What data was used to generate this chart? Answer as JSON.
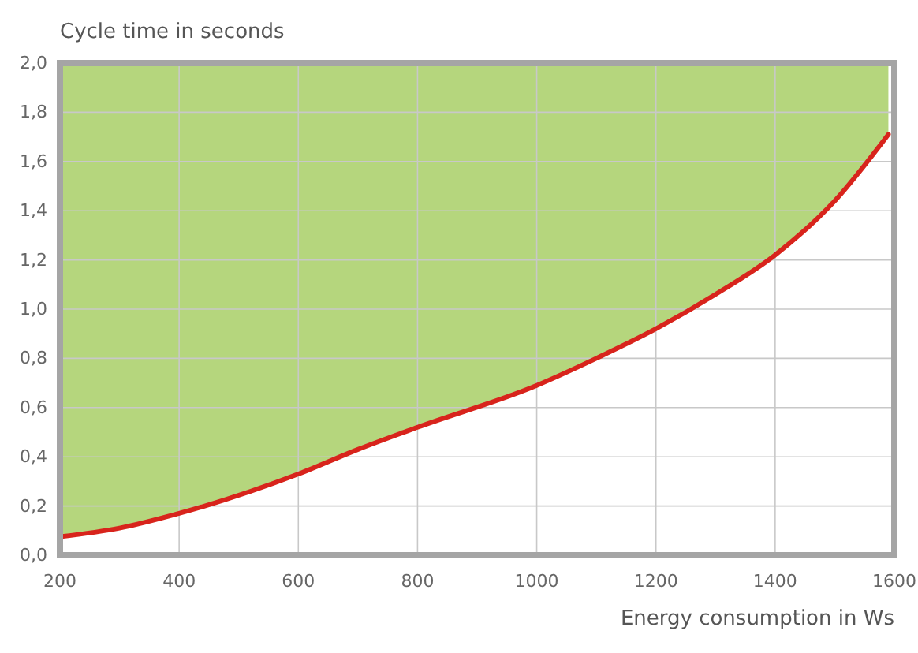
{
  "chart_data": {
    "type": "line",
    "title": "Cycle time in seconds",
    "xlabel": "Energy consumption in Ws",
    "xlim": [
      200,
      1600
    ],
    "xticks": [
      200,
      400,
      600,
      800,
      1000,
      1200,
      1400,
      1600
    ],
    "ylim": [
      0,
      2
    ],
    "yticks": [
      {
        "value": 0,
        "label": "0,0"
      },
      {
        "value": 0.2,
        "label": "0,2"
      },
      {
        "value": 0.4,
        "label": "0,4"
      },
      {
        "value": 0.6,
        "label": "0,6"
      },
      {
        "value": 0.8,
        "label": "0,8"
      },
      {
        "value": 1,
        "label": "1,0"
      },
      {
        "value": 1.2,
        "label": "1,2"
      },
      {
        "value": 1.4,
        "label": "1,4"
      },
      {
        "value": 1.6,
        "label": "1,6"
      },
      {
        "value": 1.8,
        "label": "1,8"
      },
      {
        "value": 2,
        "label": "2,0"
      }
    ],
    "grid": true,
    "marker": "none",
    "line_style": "solid",
    "series": [
      {
        "color": "#d8241c",
        "x": [
          200,
          300,
          400,
          600,
          700,
          800,
          1000,
          1100,
          1200,
          1300,
          1400,
          1500,
          1590
        ],
        "values": [
          0.075,
          0.11,
          0.17,
          0.33,
          0.43,
          0.52,
          0.69,
          0.8,
          0.92,
          1.06,
          1.22,
          1.44,
          1.71
        ],
        "lower": [
          0.075,
          0.11,
          0.17,
          0.33,
          0.43,
          0.52,
          0.69,
          0.8,
          0.92,
          1.06,
          1.22,
          1.44,
          1.71
        ],
        "upper": [
          2,
          2,
          2,
          2,
          2,
          2,
          2,
          2,
          2,
          2,
          2,
          2,
          2
        ]
      }
    ]
  }
}
